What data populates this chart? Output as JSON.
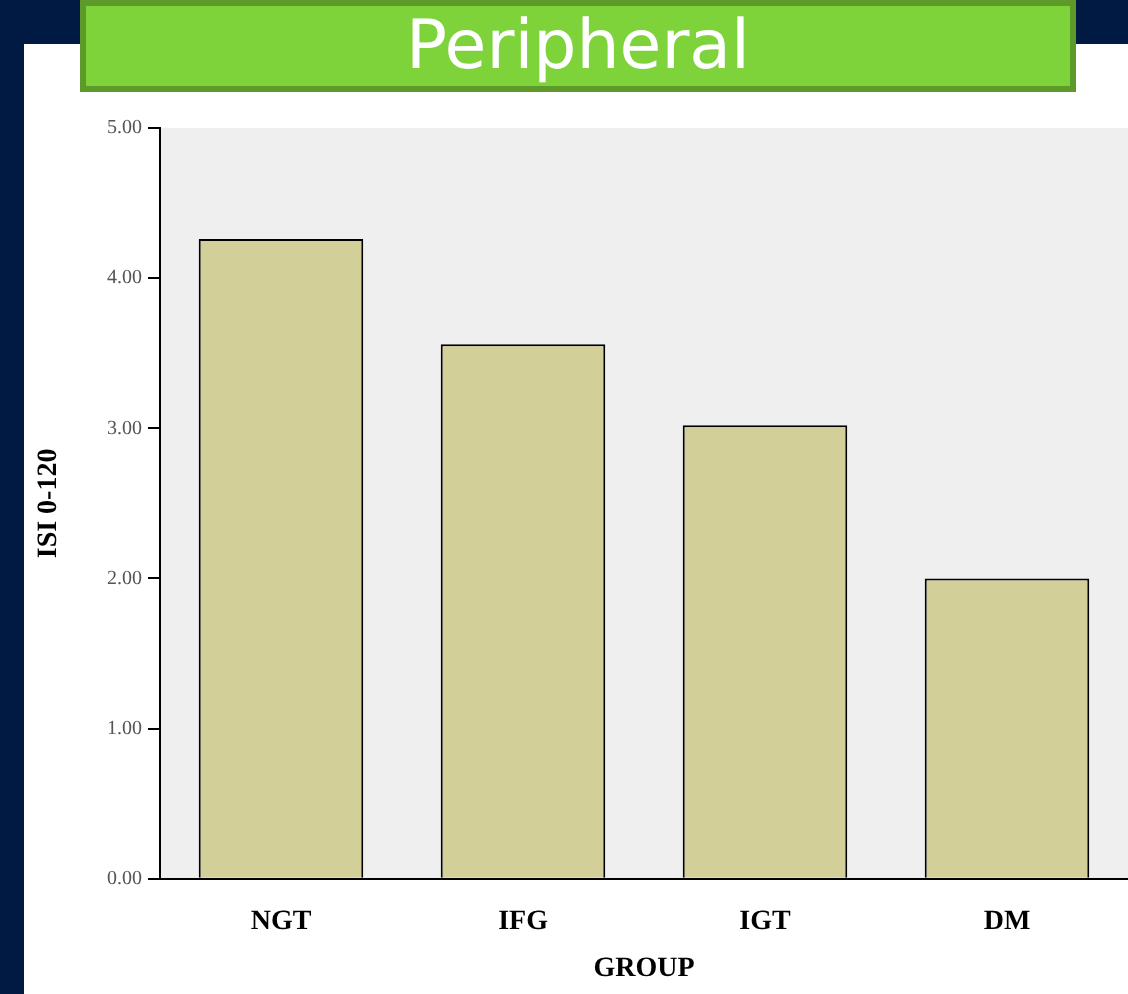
{
  "chart_data": {
    "type": "bar",
    "title": "Peripheral",
    "categories": [
      "NGT",
      "IFG",
      "IGT",
      "DM"
    ],
    "values": [
      4.26,
      3.56,
      3.02,
      2.0
    ],
    "color": "#d3cf98",
    "xlabel": "GROUP",
    "ylabel": "ISI 0-120",
    "ylim": [
      0,
      5
    ],
    "yticks": [
      {
        "value": 0,
        "label": "0.00"
      },
      {
        "value": 1,
        "label": "1.00"
      },
      {
        "value": 2,
        "label": "2.00"
      },
      {
        "value": 3,
        "label": "3.00"
      },
      {
        "value": 4,
        "label": "4.00"
      },
      {
        "value": 5,
        "label": "5.00"
      }
    ],
    "grid": false,
    "legend": false
  }
}
